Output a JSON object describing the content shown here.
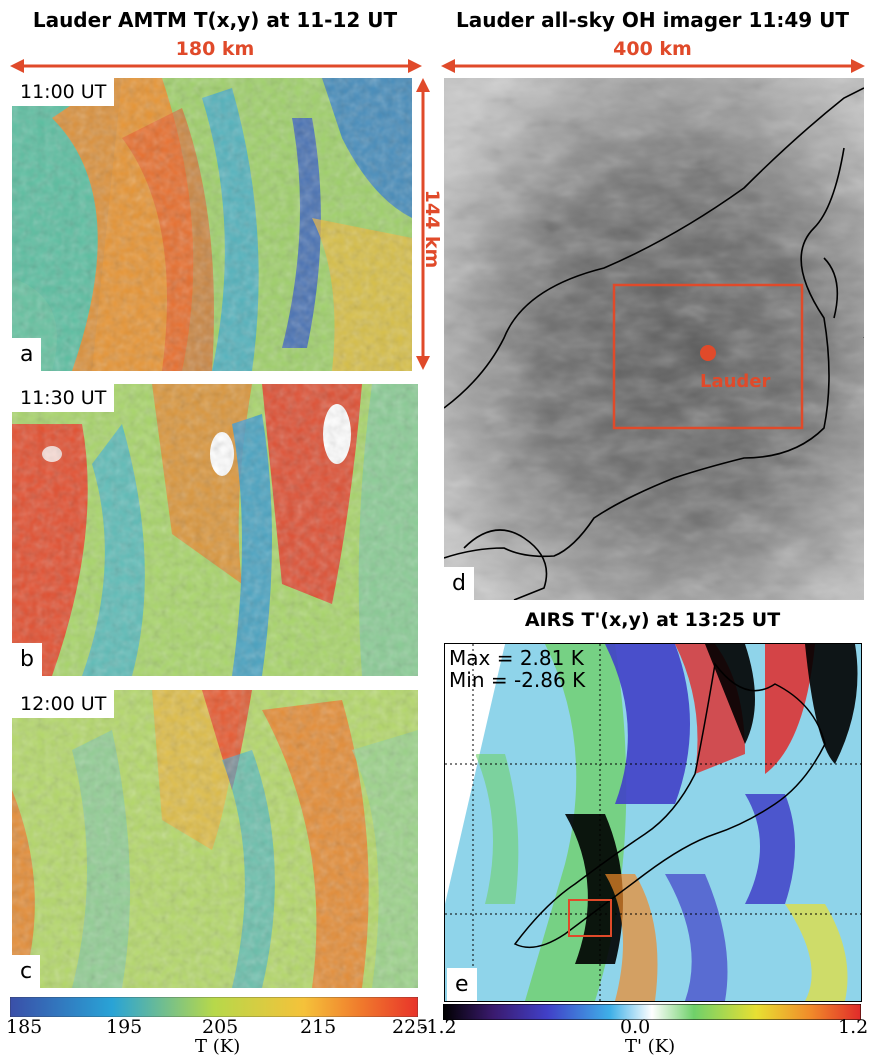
{
  "left": {
    "title": "Lauder AMTM T(x,y) at 11-12 UT",
    "scale_x": "180 km",
    "scale_y": "144 km",
    "panels": [
      {
        "time": "11:00 UT",
        "letter": "a"
      },
      {
        "time": "11:30 UT",
        "letter": "b"
      },
      {
        "time": "12:00 UT",
        "letter": "c"
      }
    ],
    "colorbar": {
      "ticks": [
        "185",
        "195",
        "205",
        "215",
        "225"
      ],
      "label": "T (K)",
      "range": [
        185,
        225
      ]
    }
  },
  "imager": {
    "title": "Lauder all-sky OH imager 11:49 UT",
    "scale_x": "400 km",
    "marker_label": "Lauder",
    "letter": "d"
  },
  "airs": {
    "title": "AIRS T'(x,y) at 13:25  UT",
    "max_text": "Max = 2.81 K",
    "min_text": "Min = -2.86 K",
    "letter": "e",
    "colorbar": {
      "ticks": [
        "-1.2",
        "0.0",
        "1.2"
      ],
      "label": "T' (K)",
      "range": [
        -1.2,
        1.2
      ]
    }
  },
  "colors": {
    "accent": "#e04a2a"
  }
}
